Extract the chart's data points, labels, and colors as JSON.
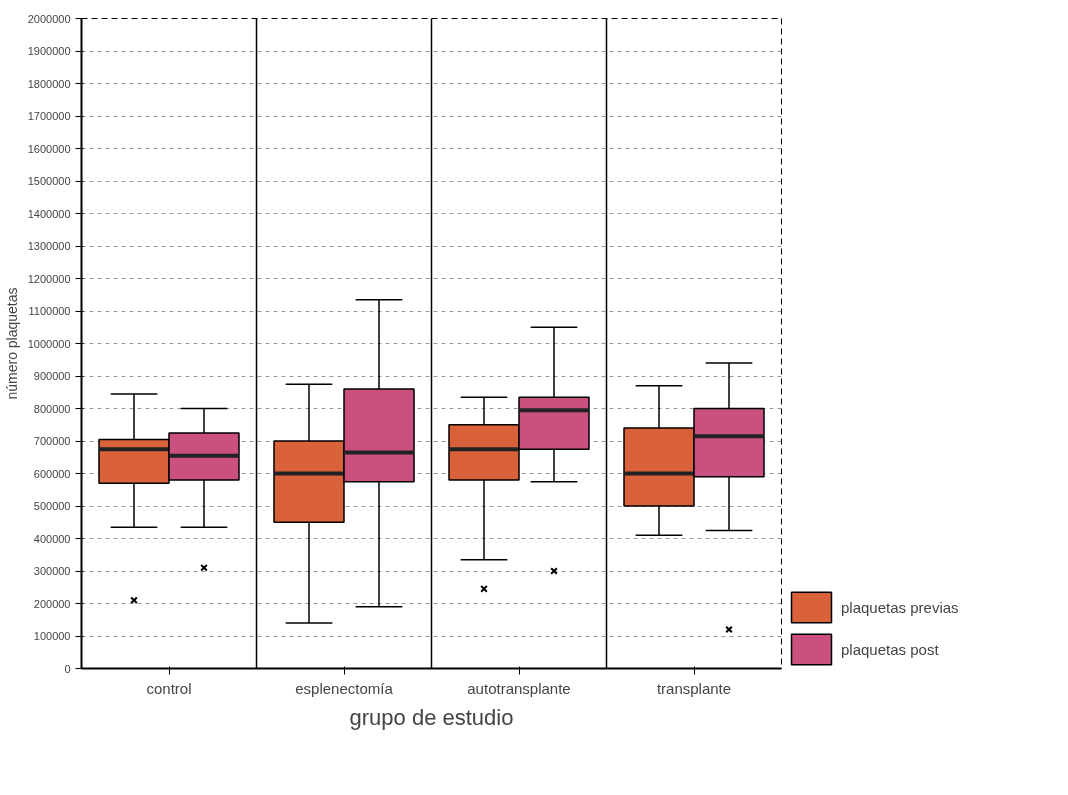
{
  "chart_data": {
    "type": "box",
    "xlabel": "grupo de estudio",
    "ylabel": "número plaquetas",
    "categories": [
      "control",
      "esplenectomía",
      "autotransplante",
      "transplante"
    ],
    "ylim": [
      0,
      2000000
    ],
    "yticks": [
      0,
      100000,
      200000,
      300000,
      400000,
      500000,
      600000,
      700000,
      800000,
      900000,
      1000000,
      1100000,
      1200000,
      1300000,
      1400000,
      1500000,
      1600000,
      1700000,
      1800000,
      1900000,
      2000000
    ],
    "grid": "y",
    "legend": "bottom right",
    "series": [
      {
        "name": "plaquetas previas",
        "color": "#d9623a",
        "boxes": [
          {
            "low": 435000,
            "q1": 570000,
            "median": 675000,
            "q3": 705000,
            "high": 845000,
            "outliers": [
              210000
            ]
          },
          {
            "low": 140000,
            "q1": 450000,
            "median": 600000,
            "q3": 700000,
            "high": 875000
          },
          {
            "low": 335000,
            "q1": 580000,
            "median": 675000,
            "q3": 750000,
            "high": 835000,
            "outliers": [
              245000
            ]
          },
          {
            "low": 410000,
            "q1": 500000,
            "median": 600000,
            "q3": 740000,
            "high": 870000
          }
        ]
      },
      {
        "name": "plaquetas post",
        "color": "#c9507f",
        "boxes": [
          {
            "low": 435000,
            "q1": 580000,
            "median": 655000,
            "q3": 725000,
            "high": 800000,
            "outliers": [
              310000
            ]
          },
          {
            "low": 190000,
            "q1": 575000,
            "median": 665000,
            "q3": 860000,
            "high": 1135000
          },
          {
            "low": 575000,
            "q1": 675000,
            "median": 795000,
            "q3": 835000,
            "high": 1050000,
            "outliers": [
              300000
            ]
          },
          {
            "low": 425000,
            "q1": 590000,
            "median": 715000,
            "q3": 800000,
            "high": 940000,
            "outliers": [
              120000
            ]
          }
        ]
      }
    ]
  }
}
